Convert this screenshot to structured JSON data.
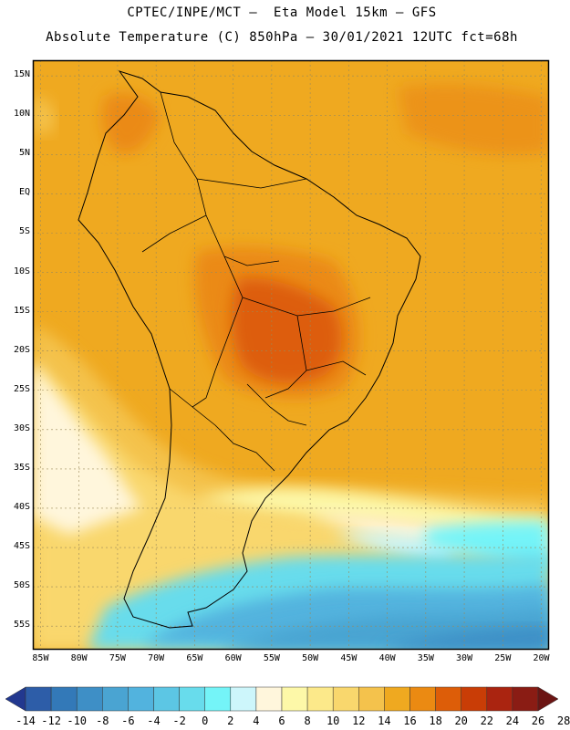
{
  "header": {
    "line1": "CPTEC/INPE/MCT –  Eta Model 15km – GFS",
    "line2": "Absolute Temperature (C) 850hPa – 30/01/2021 12UTC fct=68h"
  },
  "map": {
    "lat_labels": [
      "15N",
      "10N",
      "5N",
      "EQ",
      "5S",
      "10S",
      "15S",
      "20S",
      "25S",
      "30S",
      "35S",
      "40S",
      "45S",
      "50S",
      "55S"
    ],
    "lon_labels": [
      "85W",
      "80W",
      "75W",
      "70W",
      "65W",
      "60W",
      "55W",
      "50W",
      "45W",
      "40W",
      "35W",
      "30W",
      "25W",
      "20W"
    ],
    "domain": {
      "lon_min": -86,
      "lon_max": -19,
      "lat_min": -58,
      "lat_max": 17
    },
    "gridlines": true,
    "field_colors_hint": "orange-dark over central Brazil, yellow in south, cyan/blue in far south Atlantic"
  },
  "colorbar": {
    "labels": [
      "-14",
      "-12",
      "-10",
      "-8",
      "-6",
      "-4",
      "-2",
      "0",
      "2",
      "4",
      "6",
      "8",
      "10",
      "12",
      "14",
      "16",
      "18",
      "20",
      "22",
      "24",
      "26",
      "28"
    ],
    "colors": [
      "#22388f",
      "#2d5da8",
      "#3379b8",
      "#3e8fc6",
      "#4aa4d2",
      "#52b3de",
      "#5cc6e4",
      "#68dcec",
      "#74f4f8",
      "#cdf6fb",
      "#fff6dc",
      "#fdf8a8",
      "#fce98a",
      "#f9d76d",
      "#f4c24c",
      "#efa920",
      "#eb8a12",
      "#dd5d08",
      "#c93d06",
      "#aa2410",
      "#8a1c14",
      "#6b1413"
    ]
  }
}
